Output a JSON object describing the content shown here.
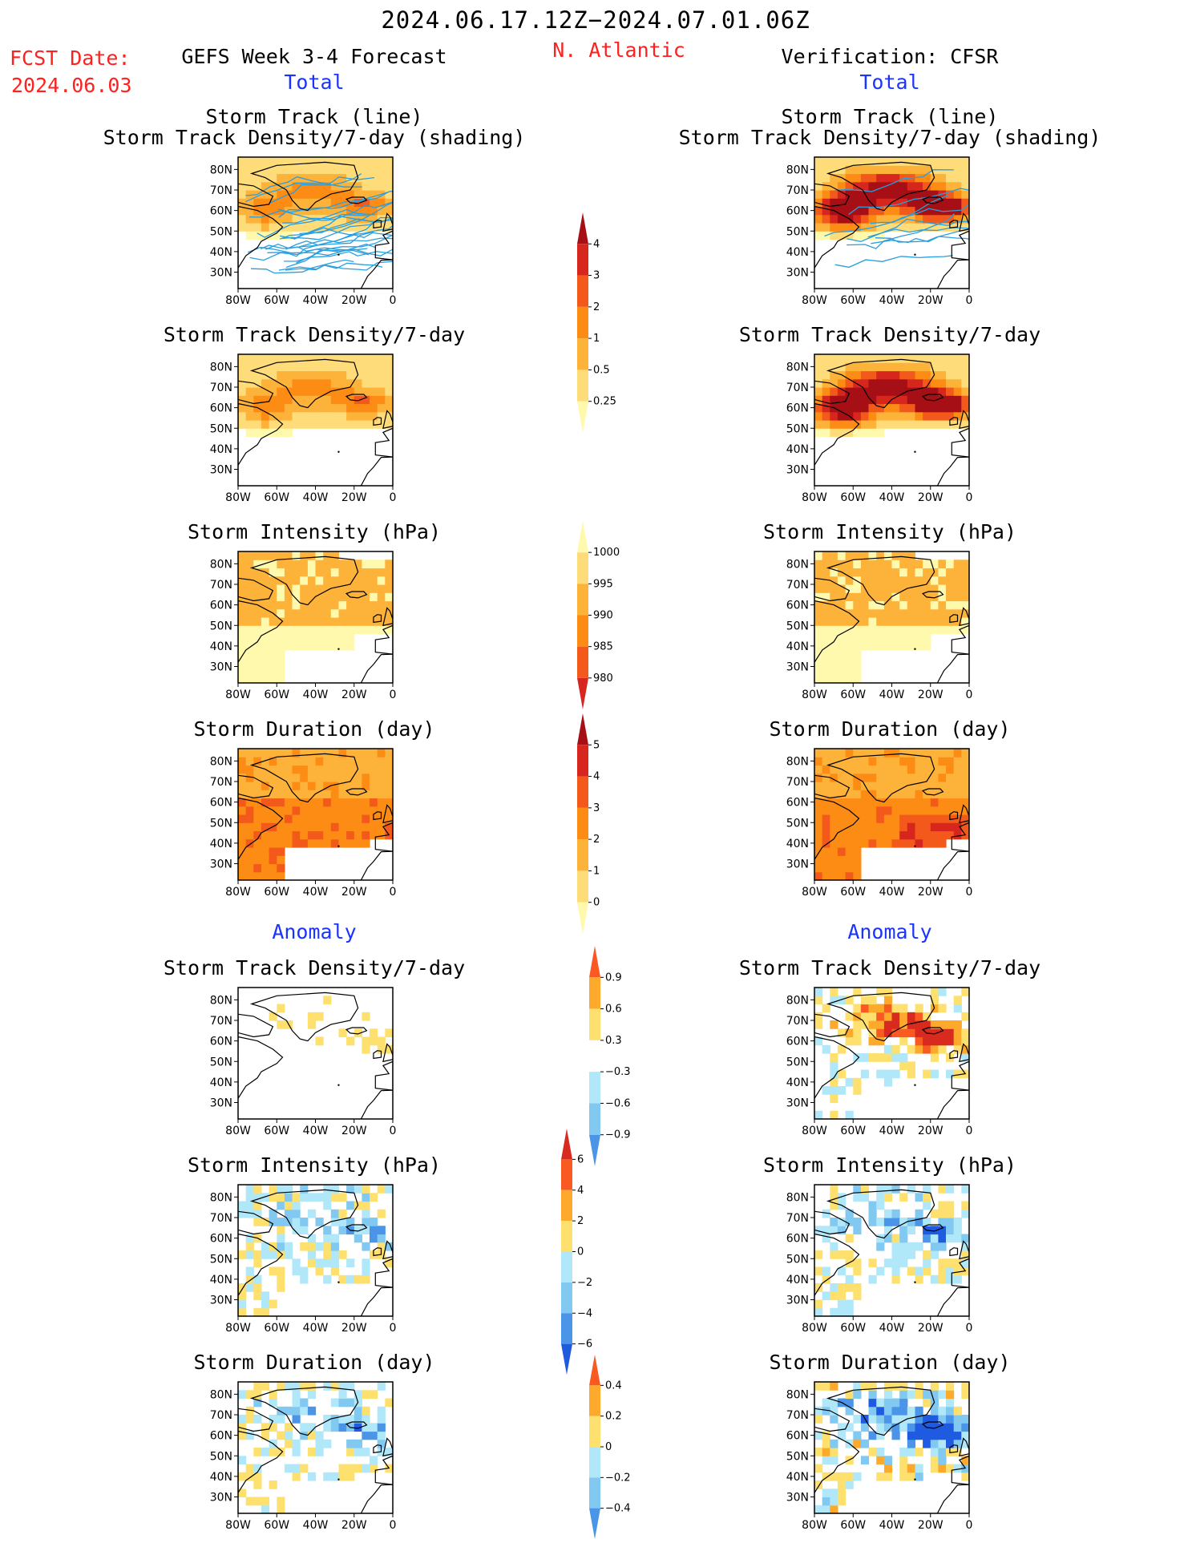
{
  "header": {
    "period": "2024.06.17.12Z−2024.07.01.06Z",
    "fcst_label": "FCST Date:",
    "fcst_date": "2024.06.03",
    "model": "GEFS Week 3-4 Forecast",
    "region": "N. Atlantic",
    "verification": "Verification: CFSR",
    "left_total": "Total",
    "right_total": "Total",
    "left_anomaly": "Anomaly",
    "right_anomaly": "Anomaly"
  },
  "panel_titles": {
    "track_line": "Storm Track (line)",
    "track_shading": "Storm Track Density/7-day (shading)",
    "density": "Storm Track Density/7-day",
    "intensity": "Storm Intensity (hPa)",
    "duration": "Storm Duration (day)"
  },
  "axes": {
    "lat_ticks": [
      "80N",
      "70N",
      "60N",
      "50N",
      "40N",
      "30N"
    ],
    "lon_ticks": [
      "80W",
      "60W",
      "40W",
      "20W",
      "0"
    ]
  },
  "colorbars": {
    "density": [
      "4",
      "3",
      "2",
      "1",
      "0.5",
      "0.25"
    ],
    "intensity": [
      "1000",
      "995",
      "990",
      "985",
      "980"
    ],
    "duration": [
      "5",
      "4",
      "3",
      "2",
      "1",
      "0"
    ],
    "density_anom": [
      "0.9",
      "0.6",
      "0.3",
      "−0.3",
      "−0.6",
      "−0.9"
    ],
    "intensity_anom": [
      "6",
      "4",
      "2",
      "0",
      "−2",
      "−4",
      "−6"
    ],
    "duration_anom": [
      "0.4",
      "0.2",
      "0",
      "−0.2",
      "−0.4"
    ]
  },
  "colors": {
    "seq": [
      "#fff9ae",
      "#fedc7a",
      "#fdb23a",
      "#fd8c14",
      "#f2591a",
      "#d7261e",
      "#a50f15"
    ],
    "div_pos": [
      "#fde06e",
      "#fda92c",
      "#f95a22",
      "#d82a1e"
    ],
    "div_neg": [
      "#b0e8fa",
      "#82c9f2",
      "#4a95e8",
      "#1f5be0"
    ],
    "track": "#2a9fdf",
    "title_red": "#ff2020",
    "title_blue": "#1a33ff"
  }
}
